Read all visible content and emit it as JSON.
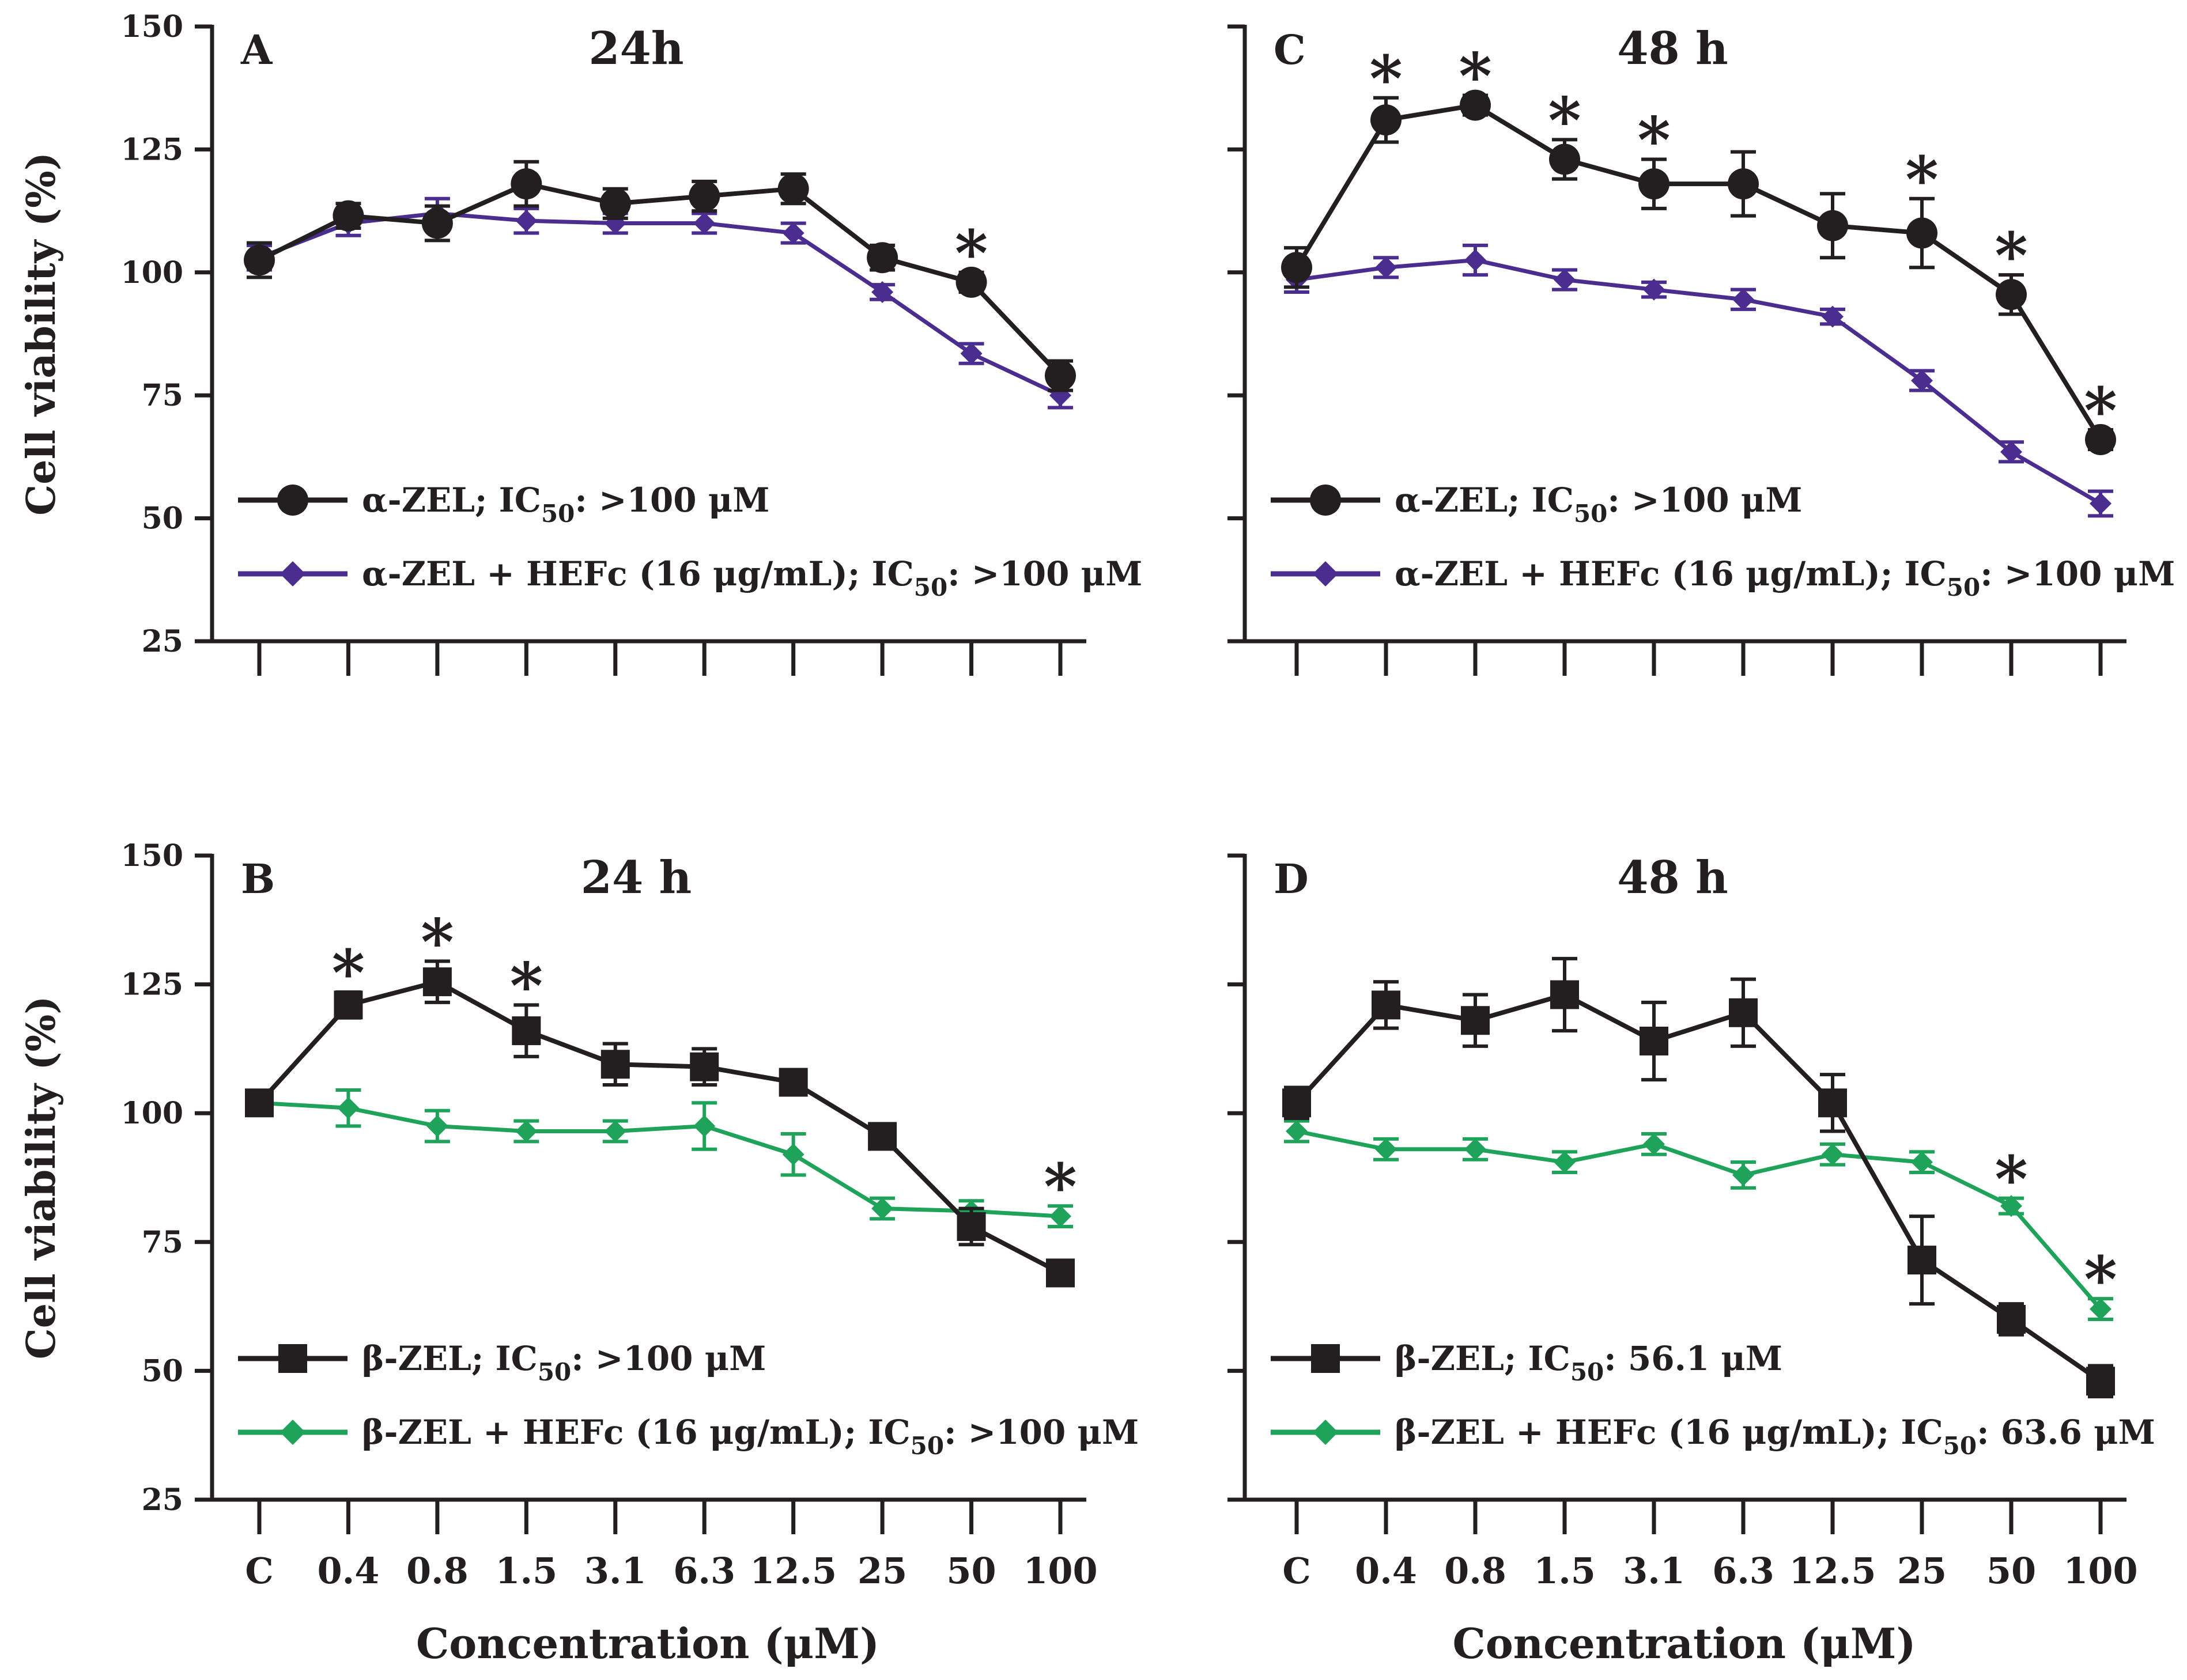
{
  "categories": [
    "C",
    "0.4",
    "0.8",
    "1.5",
    "3.1",
    "6.3",
    "12.5",
    "25",
    "50",
    "100"
  ],
  "y_ticks": [
    "150",
    "125",
    "100",
    "75",
    "50",
    "25"
  ],
  "ylabel": "Cell viability (%)",
  "xlabel": "Concentration (μM)",
  "colors": {
    "axis": "#231f20",
    "black": "#231f20",
    "purple": "#4b2d90",
    "green": "#1fa35a"
  },
  "chart_data": [
    {
      "type": "line",
      "panel": "A",
      "title": "24h",
      "ylim": [
        25,
        150
      ],
      "xlabel": "",
      "ylabel": "Cell viability (%)",
      "categories": [
        "C",
        "0.4",
        "0.8",
        "1.5",
        "3.1",
        "6.3",
        "12.5",
        "25",
        "50",
        "100"
      ],
      "series": [
        {
          "name": "α-ZEL",
          "marker": "circle",
          "color": "#231f20",
          "values": [
            102.5,
            111.5,
            110,
            118,
            114,
            115.5,
            117,
            103,
            98,
            79
          ],
          "errors": [
            3.5,
            2.5,
            3.5,
            4.5,
            3,
            3,
            3,
            2.5,
            2,
            3
          ],
          "legend_prefix": "α-ZEL; IC",
          "ic50": ": >100 μM"
        },
        {
          "name": "α-ZEL + HEFc (16 μg/mL)",
          "marker": "diamond",
          "color": "#4b2d90",
          "values": [
            103,
            110,
            112,
            110.5,
            110,
            110,
            108,
            96,
            83.5,
            75
          ],
          "errors": [
            2.5,
            2.5,
            3,
            2.5,
            2,
            2,
            2,
            1.5,
            2,
            2.5
          ],
          "legend_prefix": "α-ZEL + HEFc (16 μg/mL); IC",
          "ic50": ": >100 μM"
        }
      ],
      "significant": [
        "50"
      ]
    },
    {
      "type": "line",
      "panel": "C",
      "title": "48 h",
      "ylim": [
        25,
        150
      ],
      "xlabel": "",
      "ylabel": "",
      "categories": [
        "C",
        "0.4",
        "0.8",
        "1.5",
        "3.1",
        "6.3",
        "12.5",
        "25",
        "50",
        "100"
      ],
      "series": [
        {
          "name": "α-ZEL",
          "marker": "circle",
          "color": "#231f20",
          "values": [
            101,
            131,
            134,
            123,
            118,
            118,
            109.5,
            108,
            95.5,
            66
          ],
          "errors": [
            4,
            4.5,
            2,
            4,
            5,
            6.5,
            6.5,
            7,
            4,
            2
          ],
          "legend_prefix": "α-ZEL; IC",
          "ic50": ": >100 μM"
        },
        {
          "name": "α-ZEL + HEFc (16 μg/mL)",
          "marker": "diamond",
          "color": "#4b2d90",
          "values": [
            98.5,
            101,
            102.5,
            98.5,
            96.5,
            94.5,
            91,
            78,
            63.5,
            53
          ],
          "errors": [
            2.5,
            2,
            3,
            2,
            1.5,
            2,
            1.5,
            2,
            2,
            2.5
          ],
          "legend_prefix": "α-ZEL + HEFc (16 μg/mL); IC",
          "ic50": ": >100 μM"
        }
      ],
      "significant": [
        "0.4",
        "0.8",
        "1.5",
        "3.1",
        "25",
        "50",
        "100"
      ]
    },
    {
      "type": "line",
      "panel": "B",
      "title": "24 h",
      "ylim": [
        25,
        150
      ],
      "xlabel": "Concentration (μM)",
      "ylabel": "Cell viability (%)",
      "categories": [
        "C",
        "0.4",
        "0.8",
        "1.5",
        "3.1",
        "6.3",
        "12.5",
        "25",
        "50",
        "100"
      ],
      "series": [
        {
          "name": "β-ZEL",
          "marker": "square",
          "color": "#231f20",
          "values": [
            102,
            121,
            125.5,
            116,
            109.5,
            109,
            106,
            95.5,
            78,
            69
          ],
          "errors": [
            2,
            2.5,
            4,
            5,
            4,
            3.5,
            2,
            2,
            3.5,
            2
          ],
          "legend_prefix": "β-ZEL; IC",
          "ic50": ": >100 μM"
        },
        {
          "name": "β-ZEL + HEFc (16 μg/mL)",
          "marker": "diamond",
          "color": "#1fa35a",
          "values": [
            102,
            101,
            97.5,
            96.5,
            96.5,
            97.5,
            92,
            81.5,
            81,
            80
          ],
          "errors": [
            2,
            3.5,
            3,
            2,
            2,
            4.5,
            4,
            2,
            2,
            2
          ],
          "legend_prefix": "β-ZEL + HEFc (16 μg/mL); IC",
          "ic50": ": >100 μM"
        }
      ],
      "significant": [
        "0.4",
        "0.8",
        "1.5",
        "100"
      ]
    },
    {
      "type": "line",
      "panel": "D",
      "title": "48 h",
      "ylim": [
        25,
        150
      ],
      "xlabel": "Concentration (μM)",
      "ylabel": "",
      "categories": [
        "C",
        "0.4",
        "0.8",
        "1.5",
        "3.1",
        "6.3",
        "12.5",
        "25",
        "50",
        "100"
      ],
      "series": [
        {
          "name": "β-ZEL",
          "marker": "square",
          "color": "#231f20",
          "values": [
            102,
            121,
            118,
            123,
            114,
            119.5,
            102,
            71.5,
            60,
            48
          ],
          "errors": [
            3,
            4.5,
            5,
            7,
            7.5,
            6.5,
            5.5,
            8.5,
            3,
            3
          ],
          "legend_prefix": "β-ZEL; IC",
          "ic50": ": 56.1 μM"
        },
        {
          "name": "β-ZEL + HEFc (16 μg/mL)",
          "marker": "diamond",
          "color": "#1fa35a",
          "values": [
            96.5,
            93,
            93,
            90.5,
            94,
            88,
            92,
            90.5,
            82,
            62
          ],
          "errors": [
            2,
            2,
            2,
            2,
            2,
            2.5,
            2,
            2,
            1.5,
            2
          ],
          "legend_prefix": "β-ZEL + HEFc (16 μg/mL); IC",
          "ic50": ": 63.6 μM"
        }
      ],
      "significant": [
        "50",
        "100"
      ]
    }
  ]
}
